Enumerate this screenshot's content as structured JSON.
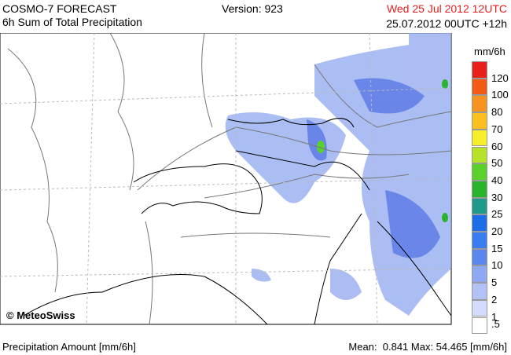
{
  "header": {
    "title": "COSMO-7 FORECAST",
    "subtitle": "6h Sum of Total Precipitation",
    "version": "Version: 923",
    "valid_time": "Wed 25 Jul 2012 12UTC",
    "run": "25.07.2012 00UTC +12h"
  },
  "legend": {
    "unit": "mm/6h",
    "levels": [
      {
        "label": "120",
        "color": "#e8201a"
      },
      {
        "label": "100",
        "color": "#f25a16"
      },
      {
        "label": "80",
        "color": "#f7931e"
      },
      {
        "label": "70",
        "color": "#fbbf1f"
      },
      {
        "label": "60",
        "color": "#f6ef2a"
      },
      {
        "label": "50",
        "color": "#b6e22a"
      },
      {
        "label": "40",
        "color": "#5bd22c"
      },
      {
        "label": "30",
        "color": "#2ab32c"
      },
      {
        "label": "25",
        "color": "#1f9a8c"
      },
      {
        "label": "20",
        "color": "#1c6ee6"
      },
      {
        "label": "15",
        "color": "#3a7df0"
      },
      {
        "label": "10",
        "color": "#5a86ee"
      },
      {
        "label": "5",
        "color": "#8ea8f3"
      },
      {
        "label": "2",
        "color": "#b2c2f6"
      },
      {
        "label": "1",
        "color": "#d3dcfa"
      },
      {
        "label": ".5",
        "color": "#ffffff"
      }
    ]
  },
  "map": {
    "credit": "© MeteoSwiss"
  },
  "footer": {
    "left": "Precipitation Amount [mm/6h]",
    "stats": "Mean:  0.841 Max: 54.465 [mm/6h]"
  }
}
